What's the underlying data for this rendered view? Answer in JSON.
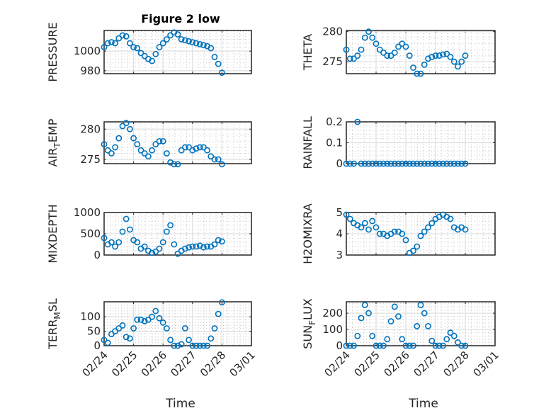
{
  "chart_data": [
    {
      "type": "scatter",
      "title": "Figure 2 low",
      "ylabel": "PRESSURE",
      "xlabel": "",
      "ylim": [
        977,
        1021
      ],
      "yticks": [
        980,
        1000
      ],
      "values": [
        1004,
        1008,
        1009,
        1008,
        1013,
        1016,
        1015,
        1008,
        1004,
        1003,
        998,
        995,
        992,
        990,
        997,
        1004,
        1008,
        1012,
        1016,
        1019,
        1017,
        1012,
        1011,
        1010,
        1009,
        1008,
        1007,
        1006,
        1005,
        1003,
        994,
        987,
        978
      ]
    },
    {
      "type": "scatter",
      "title": "",
      "ylabel": "THETA",
      "xlabel": "",
      "ylim": [
        273,
        280.2
      ],
      "yticks": [
        275,
        280
      ],
      "values": [
        277,
        275.5,
        275.5,
        276,
        277,
        279,
        280,
        279,
        278,
        277,
        276.5,
        276,
        276,
        276.5,
        277.5,
        278,
        277.5,
        276,
        274,
        273,
        273,
        274.5,
        275.5,
        275.8,
        276,
        276,
        276.2,
        276.3,
        275.8,
        275,
        274.2,
        275,
        276
      ]
    },
    {
      "type": "scatter",
      "title": "",
      "ylabel": "AIR_TEMP",
      "xlabel": "",
      "ylim": [
        274.3,
        281.2
      ],
      "yticks": [
        275,
        280
      ],
      "values": [
        277.5,
        276.5,
        276,
        277,
        278.5,
        280.5,
        281,
        280,
        278.5,
        277.5,
        276.5,
        276,
        275.5,
        276.5,
        277.5,
        278,
        278,
        276,
        274.5,
        274.2,
        274.2,
        276.5,
        277,
        277,
        276.5,
        276.8,
        277,
        277,
        276.5,
        275.5,
        275,
        275,
        274.2
      ]
    },
    {
      "type": "scatter",
      "title": "",
      "ylabel": "RAINFALL",
      "xlabel": "",
      "ylim": [
        0,
        0.2
      ],
      "yticks": [
        0,
        0.1,
        0.2
      ],
      "values": [
        0,
        0,
        0,
        0.2,
        0,
        0,
        0,
        0,
        0,
        0,
        0,
        0,
        0,
        0,
        0,
        0,
        0,
        0,
        0,
        0,
        0,
        0,
        0,
        0,
        0,
        0,
        0,
        0,
        0,
        0,
        0,
        0,
        0
      ]
    },
    {
      "type": "scatter",
      "title": "",
      "ylabel": "MIXDEPTH",
      "xlabel": "",
      "ylim": [
        0,
        1000
      ],
      "yticks": [
        0,
        500,
        1000
      ],
      "values": [
        400,
        250,
        300,
        200,
        300,
        550,
        850,
        600,
        350,
        300,
        150,
        200,
        100,
        50,
        80,
        150,
        300,
        550,
        700,
        250,
        30,
        100,
        150,
        180,
        200,
        200,
        220,
        180,
        200,
        200,
        250,
        350,
        320
      ]
    },
    {
      "type": "scatter",
      "title": "",
      "ylabel": "H2OMIXRA",
      "xlabel": "",
      "ylim": [
        3,
        5
      ],
      "yticks": [
        3,
        4,
        5
      ],
      "values": [
        4.9,
        4.7,
        4.5,
        4.4,
        4.3,
        4.5,
        4.2,
        4.6,
        4.3,
        4.0,
        4.0,
        3.9,
        4.0,
        4.1,
        4.1,
        4.0,
        3.7,
        3.1,
        3.2,
        3.4,
        3.9,
        4.1,
        4.3,
        4.5,
        4.7,
        4.8,
        4.9,
        4.8,
        4.7,
        4.3,
        4.2,
        4.3,
        4.2
      ]
    },
    {
      "type": "scatter",
      "title": "",
      "ylabel": "TERR_MSL",
      "xlabel": "Time",
      "ylim": [
        0,
        152
      ],
      "yticks": [
        0,
        50,
        100
      ],
      "values": [
        20,
        10,
        40,
        50,
        60,
        70,
        30,
        25,
        60,
        90,
        90,
        85,
        90,
        100,
        120,
        95,
        80,
        60,
        20,
        0,
        0,
        5,
        60,
        20,
        0,
        0,
        0,
        0,
        0,
        25,
        60,
        110,
        150
      ]
    },
    {
      "type": "scatter",
      "title": "",
      "ylabel": "SUN_FLUX",
      "xlabel": "Time",
      "ylim": [
        0,
        270
      ],
      "yticks": [
        0,
        100,
        200
      ],
      "values": [
        0,
        0,
        0,
        60,
        170,
        250,
        200,
        60,
        0,
        0,
        0,
        40,
        150,
        240,
        180,
        40,
        0,
        0,
        0,
        120,
        250,
        200,
        120,
        30,
        0,
        0,
        0,
        40,
        80,
        60,
        20,
        0,
        0
      ]
    }
  ],
  "x_axis": {
    "start_day": 0,
    "step_days": 0.125,
    "xlim": [
      0,
      5
    ],
    "tick_labels": [
      "02/24",
      "02/25",
      "02/26",
      "02/27",
      "02/28",
      "03/01"
    ]
  },
  "colors": {
    "marker": "#0072BD",
    "axis": "#262626",
    "grid": "#dfdfdf"
  }
}
